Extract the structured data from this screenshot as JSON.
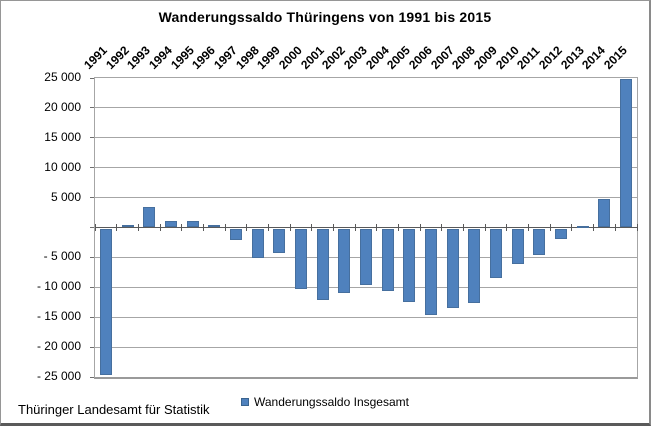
{
  "title": "Wanderungssaldo Thüringens von 1991 bis 2015",
  "footer": "Thüringer Landesamt für Statistik",
  "legend": {
    "label": "Wanderungssaldo Insgesamt",
    "swatch_color": "#4F81BD"
  },
  "y_axis": {
    "ticks": [
      {
        "label": "25 000",
        "value": 25000
      },
      {
        "label": "20 000",
        "value": 20000
      },
      {
        "label": "15 000",
        "value": 15000
      },
      {
        "label": "10 000",
        "value": 10000
      },
      {
        "label": "5 000",
        "value": 5000
      },
      {
        "label": "- 5 000",
        "value": -5000
      },
      {
        "label": "- 10 000",
        "value": -10000
      },
      {
        "label": "- 15 000",
        "value": -15000
      },
      {
        "label": "- 20 000",
        "value": -20000
      },
      {
        "label": "- 25 000",
        "value": -25000
      }
    ],
    "zero_label_shown": false
  },
  "chart_data": {
    "type": "bar",
    "title": "Wanderungssaldo Thüringens von 1991 bis 2015",
    "categories": [
      "1991",
      "1992",
      "1993",
      "1994",
      "1995",
      "1996",
      "1997",
      "1998",
      "1999",
      "2000",
      "2001",
      "2002",
      "2003",
      "2004",
      "2005",
      "2006",
      "2007",
      "2008",
      "2009",
      "2010",
      "2011",
      "2012",
      "2013",
      "2014",
      "2015"
    ],
    "series": [
      {
        "name": "Wanderungssaldo Insgesamt",
        "values": [
          -24500,
          400,
          3500,
          1100,
          1100,
          500,
          -1900,
          -5000,
          -4100,
          -10100,
          -12000,
          -10800,
          -9500,
          -10400,
          -12300,
          -14500,
          -13300,
          -12500,
          -8200,
          -6000,
          -4500,
          -1700,
          200,
          4700,
          24800
        ]
      }
    ],
    "xlabel": "",
    "ylabel": "",
    "ylim": [
      -25000,
      25000
    ],
    "ytick_step": 5000,
    "grid": "horizontal",
    "legend_position": "bottom",
    "bar_color": "#4F81BD",
    "gridline_color": "#a6a6a6",
    "zero_line_color": "#595959"
  }
}
